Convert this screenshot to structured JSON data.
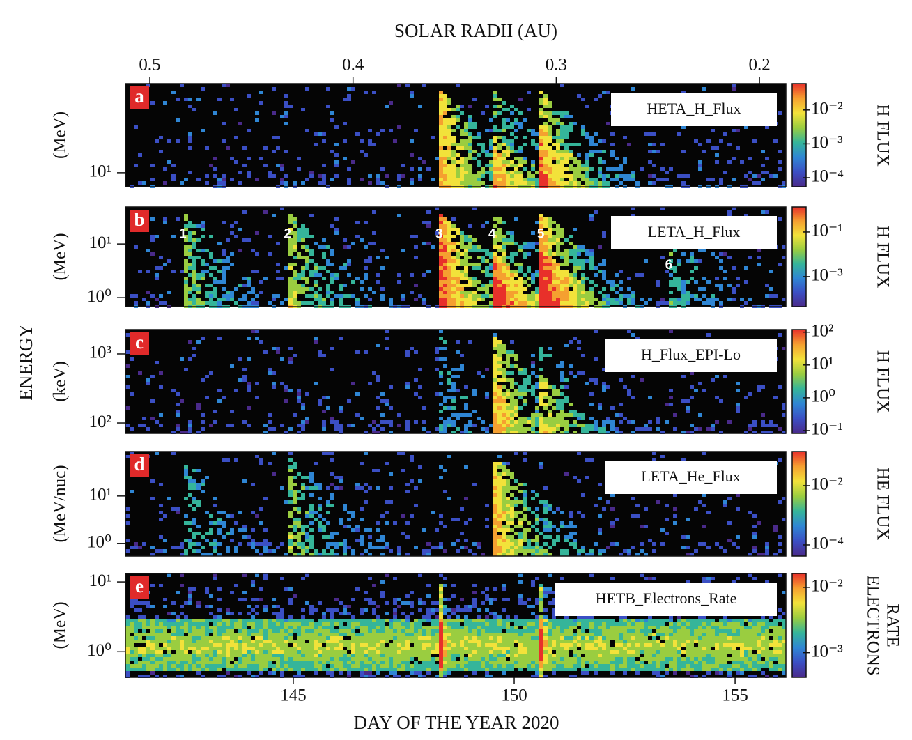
{
  "figure_ylabel": "ENERGY",
  "colormap": [
    "#4a2a8a",
    "#3b4fc4",
    "#2f86d4",
    "#35b59a",
    "#9acd40",
    "#f2e23a",
    "#f5a030",
    "#e8302a"
  ],
  "chart_data": [
    {
      "type": "heatmap",
      "panel": "a",
      "title": "HETA_H_Flux",
      "ylabel": "(MeV)",
      "yscale": "log",
      "ylim": [
        6.8,
        116
      ],
      "yticks": [
        {
          "value": 10,
          "label": "10¹"
        }
      ],
      "x2label": "SOLAR RADII (AU)",
      "x2lim": [
        0.512,
        0.187
      ],
      "x2ticks": [
        0.5,
        0.4,
        0.3,
        0.2
      ],
      "colorbar": {
        "label": [
          "H FLUX"
        ],
        "scale": "log",
        "lim": [
          5.4e-05,
          0.06
        ],
        "ticks": [
          {
            "value": 0.01,
            "label": "10⁻²"
          },
          {
            "value": 0.001,
            "label": "10⁻³"
          },
          {
            "value": 0.0001,
            "label": "10⁻⁴"
          }
        ]
      }
    },
    {
      "type": "heatmap",
      "panel": "b",
      "title": "LETA_H_Flux",
      "ylabel": "(MeV)",
      "yscale": "log",
      "ylim": [
        0.68,
        49
      ],
      "yticks": [
        {
          "value": 1,
          "label": "10⁰"
        },
        {
          "value": 10,
          "label": "10¹"
        }
      ],
      "annotations": [
        {
          "text": "1",
          "x": 142.5,
          "y": 15
        },
        {
          "text": "2",
          "x": 144.87,
          "y": 15
        },
        {
          "text": "3",
          "x": 148.3,
          "y": 15
        },
        {
          "text": "4",
          "x": 149.5,
          "y": 15
        },
        {
          "text": "5",
          "x": 150.6,
          "y": 15
        },
        {
          "text": "6",
          "x": 153.5,
          "y": 4
        }
      ],
      "colorbar": {
        "label": [
          "H FLUX"
        ],
        "scale": "log",
        "lim": [
          4.5e-05,
          1.33
        ],
        "ticks": [
          {
            "value": 0.1,
            "label": "10⁻¹"
          },
          {
            "value": 0.001,
            "label": "10⁻³"
          }
        ]
      }
    },
    {
      "type": "heatmap",
      "panel": "c",
      "title": "H_Flux_EPI-Lo",
      "ylabel": "(keV)",
      "yscale": "log",
      "ylim": [
        70.6,
        2255
      ],
      "yticks": [
        {
          "value": 100,
          "label": "10²"
        },
        {
          "value": 1000,
          "label": "10³"
        }
      ],
      "colorbar": {
        "label": [
          "H FLUX"
        ],
        "scale": "log",
        "lim": [
          0.082,
          120
        ],
        "ticks": [
          {
            "value": 100,
            "label": "10²"
          },
          {
            "value": 10,
            "label": "10¹"
          },
          {
            "value": 1,
            "label": "10⁰"
          },
          {
            "value": 0.1,
            "label": "10⁻¹"
          }
        ]
      }
    },
    {
      "type": "heatmap",
      "panel": "d",
      "title": "LETA_He_Flux",
      "ylabel": "(MeV/nuc)",
      "yscale": "log",
      "ylim": [
        0.54,
        87
      ],
      "yticks": [
        {
          "value": 1,
          "label": "10⁰"
        },
        {
          "value": 10,
          "label": "10¹"
        }
      ],
      "colorbar": {
        "label": [
          "HE FLUX"
        ],
        "scale": "log",
        "lim": [
          4.2e-05,
          0.142
        ],
        "ticks": [
          {
            "value": 0.01,
            "label": "10⁻²"
          },
          {
            "value": 0.0001,
            "label": "10⁻⁴"
          }
        ]
      }
    },
    {
      "type": "heatmap",
      "panel": "e",
      "title": "HETB_Electrons_Rate",
      "ylabel": "(MeV)",
      "yscale": "log",
      "ylim": [
        0.43,
        13.2
      ],
      "yticks": [
        {
          "value": 1,
          "label": "10⁰"
        },
        {
          "value": 10,
          "label": "10¹"
        }
      ],
      "xlabel": "DAY OF THE YEAR 2020",
      "xlim": [
        141.2,
        156.15
      ],
      "xticks": [
        145,
        150,
        155
      ],
      "colorbar": {
        "label": [
          "ELECTRONS",
          "RATE"
        ],
        "scale": "log",
        "lim": [
          0.00042,
          0.0163
        ],
        "ticks": [
          {
            "value": 0.01,
            "label": "10⁻²"
          },
          {
            "value": 0.001,
            "label": "10⁻³"
          }
        ]
      }
    }
  ]
}
